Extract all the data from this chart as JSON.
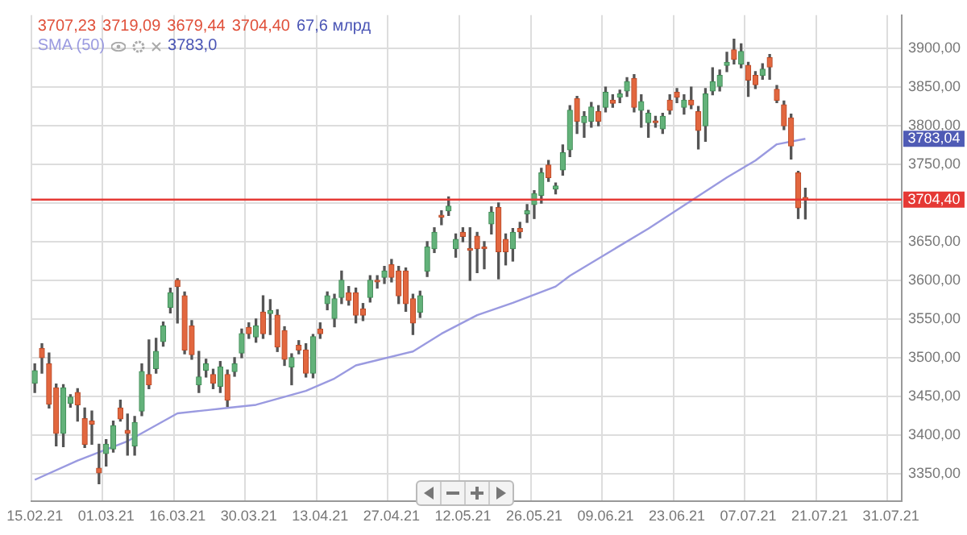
{
  "chart_data": {
    "type": "candlestick",
    "categories": [
      "15.02.21",
      null,
      null,
      null,
      null,
      null,
      null,
      null,
      null,
      null,
      "01.03.21",
      null,
      null,
      null,
      null,
      null,
      null,
      null,
      null,
      null,
      "16.03.21",
      null,
      null,
      null,
      null,
      null,
      null,
      null,
      null,
      null,
      "30.03.21",
      null,
      null,
      null,
      null,
      null,
      null,
      null,
      null,
      null,
      "13.04.21",
      null,
      null,
      null,
      null,
      null,
      null,
      null,
      null,
      null,
      "27.04.21",
      null,
      null,
      null,
      null,
      null,
      null,
      null,
      null,
      null,
      "12.05.21",
      null,
      null,
      null,
      null,
      null,
      null,
      null,
      null,
      null,
      "26.05.21",
      null,
      null,
      null,
      null,
      null,
      null,
      null,
      null,
      null,
      "09.06.21",
      null,
      null,
      null,
      null,
      null,
      null,
      null,
      null,
      null,
      "23.06.21",
      null,
      null,
      null,
      null,
      null,
      null,
      null,
      null,
      null,
      "07.07.21",
      null,
      null,
      null,
      null,
      null,
      null,
      null,
      null,
      null,
      "21.07.21",
      null,
      null,
      null,
      null,
      null,
      null,
      null,
      null,
      null,
      "31.07.21",
      null
    ],
    "ohlc": [
      [
        3467,
        3492,
        3455,
        3483
      ],
      [
        3512,
        3518,
        3480,
        3500
      ],
      [
        3492,
        3506,
        3435,
        3440
      ],
      [
        3461,
        3466,
        3386,
        3402
      ],
      [
        3402,
        3465,
        3385,
        3461
      ],
      [
        3441,
        3452,
        3436,
        3449
      ],
      [
        3455,
        3460,
        3418,
        3439
      ],
      [
        3421,
        3435,
        3384,
        3388
      ],
      [
        3418,
        3431,
        3388,
        3414
      ],
      [
        3357,
        3388,
        3337,
        3351
      ],
      [
        3376,
        3394,
        3360,
        3388
      ],
      [
        3382,
        3418,
        3378,
        3412
      ],
      [
        3435,
        3445,
        3418,
        3421
      ],
      [
        3406,
        3427,
        3374,
        3402
      ],
      [
        3386,
        3424,
        3374,
        3416
      ],
      [
        3431,
        3492,
        3425,
        3482
      ],
      [
        3478,
        3523,
        3460,
        3465
      ],
      [
        3486,
        3525,
        3480,
        3508
      ],
      [
        3521,
        3546,
        3515,
        3541
      ],
      [
        3565,
        3590,
        3558,
        3584
      ],
      [
        3600,
        3602,
        3545,
        3592
      ],
      [
        3580,
        3585,
        3505,
        3510
      ],
      [
        3541,
        3548,
        3498,
        3504
      ],
      [
        3465,
        3508,
        3455,
        3475
      ],
      [
        3484,
        3498,
        3475,
        3492
      ],
      [
        3478,
        3485,
        3460,
        3467
      ],
      [
        3463,
        3495,
        3455,
        3488
      ],
      [
        3478,
        3484,
        3437,
        3445
      ],
      [
        3482,
        3500,
        3476,
        3492
      ],
      [
        3506,
        3537,
        3500,
        3531
      ],
      [
        3539,
        3545,
        3525,
        3531
      ],
      [
        3527,
        3550,
        3520,
        3541
      ],
      [
        3559,
        3580,
        3525,
        3531
      ],
      [
        3557,
        3575,
        3530,
        3561
      ],
      [
        3555,
        3562,
        3508,
        3514
      ],
      [
        3535,
        3540,
        3490,
        3498
      ],
      [
        3488,
        3505,
        3465,
        3500
      ],
      [
        3516,
        3522,
        3505,
        3510
      ],
      [
        3510,
        3518,
        3475,
        3480
      ],
      [
        3480,
        3530,
        3474,
        3527
      ],
      [
        3537,
        3545,
        3525,
        3531
      ],
      [
        3570,
        3585,
        3562,
        3580
      ],
      [
        3551,
        3582,
        3540,
        3576
      ],
      [
        3578,
        3612,
        3570,
        3600
      ],
      [
        3584,
        3592,
        3568,
        3574
      ],
      [
        3584,
        3590,
        3545,
        3555
      ],
      [
        3563,
        3570,
        3548,
        3555
      ],
      [
        3578,
        3606,
        3572,
        3600
      ],
      [
        3600,
        3606,
        3590,
        3598
      ],
      [
        3604,
        3618,
        3596,
        3612
      ],
      [
        3620,
        3627,
        3598,
        3604
      ],
      [
        3612,
        3618,
        3570,
        3580
      ],
      [
        3612,
        3616,
        3560,
        3570
      ],
      [
        3576,
        3582,
        3530,
        3545
      ],
      [
        3559,
        3586,
        3552,
        3580
      ],
      [
        3612,
        3650,
        3605,
        3643
      ],
      [
        3641,
        3668,
        3636,
        3662
      ],
      [
        3684,
        3690,
        3672,
        3682
      ],
      [
        3690,
        3708,
        3684,
        3696
      ],
      [
        3641,
        3660,
        3630,
        3653
      ],
      [
        3662,
        3668,
        3650,
        3657
      ],
      [
        3641,
        3668,
        3600,
        3639
      ],
      [
        3657,
        3662,
        3610,
        3641
      ],
      [
        3643,
        3650,
        3615,
        3641
      ],
      [
        3673,
        3695,
        3660,
        3688
      ],
      [
        3694,
        3700,
        3602,
        3637
      ],
      [
        3653,
        3660,
        3620,
        3637
      ],
      [
        3641,
        3667,
        3625,
        3662
      ],
      [
        3667,
        3675,
        3655,
        3663
      ],
      [
        3686,
        3698,
        3675,
        3690
      ],
      [
        3698,
        3716,
        3680,
        3712
      ],
      [
        3710,
        3745,
        3700,
        3739
      ],
      [
        3749,
        3755,
        3728,
        3733
      ],
      [
        3718,
        3726,
        3712,
        3722
      ],
      [
        3743,
        3775,
        3736,
        3765
      ],
      [
        3769,
        3826,
        3760,
        3820
      ],
      [
        3835,
        3838,
        3790,
        3806
      ],
      [
        3804,
        3818,
        3785,
        3812
      ],
      [
        3806,
        3830,
        3798,
        3824
      ],
      [
        3818,
        3826,
        3800,
        3806
      ],
      [
        3824,
        3850,
        3818,
        3843
      ],
      [
        3833,
        3840,
        3824,
        3829
      ],
      [
        3837,
        3846,
        3830,
        3841
      ],
      [
        3845,
        3862,
        3838,
        3857
      ],
      [
        3861,
        3866,
        3818,
        3824
      ],
      [
        3820,
        3840,
        3798,
        3831
      ],
      [
        3804,
        3820,
        3785,
        3816
      ],
      [
        3806,
        3812,
        3798,
        3804
      ],
      [
        3796,
        3816,
        3790,
        3812
      ],
      [
        3833,
        3840,
        3815,
        3820
      ],
      [
        3843,
        3848,
        3830,
        3837
      ],
      [
        3824,
        3840,
        3815,
        3833
      ],
      [
        3833,
        3850,
        3822,
        3827
      ],
      [
        3818,
        3825,
        3770,
        3794
      ],
      [
        3800,
        3848,
        3780,
        3841
      ],
      [
        3845,
        3875,
        3840,
        3857
      ],
      [
        3851,
        3872,
        3845,
        3865
      ],
      [
        3878,
        3895,
        3870,
        3882
      ],
      [
        3898,
        3912,
        3880,
        3886
      ],
      [
        3880,
        3906,
        3875,
        3896
      ],
      [
        3878,
        3882,
        3838,
        3859
      ],
      [
        3865,
        3870,
        3848,
        3853
      ],
      [
        3865,
        3880,
        3860,
        3873
      ],
      [
        3888,
        3892,
        3860,
        3876
      ],
      [
        3847,
        3852,
        3830,
        3833
      ],
      [
        3827,
        3832,
        3795,
        3800
      ],
      [
        3810,
        3815,
        3757,
        3774
      ],
      [
        3739,
        3741,
        3680,
        3694
      ],
      [
        3707.23,
        3719.09,
        3679.44,
        3704.4
      ],
      null,
      null,
      null,
      null,
      null,
      null,
      null,
      null,
      null,
      null,
      null,
      null,
      null
    ],
    "series": [
      {
        "name": "SMA (50)",
        "type": "line",
        "color": "#9a9ae0",
        "values": [
          3342,
          null,
          null,
          null,
          null,
          null,
          3367,
          null,
          null,
          null,
          null,
          null,
          null,
          3392,
          null,
          null,
          null,
          null,
          null,
          null,
          3428,
          null,
          null,
          null,
          null,
          null,
          null,
          3435,
          null,
          null,
          null,
          3439,
          null,
          null,
          null,
          null,
          null,
          null,
          3457,
          null,
          null,
          null,
          3473,
          null,
          null,
          3490,
          null,
          null,
          null,
          null,
          null,
          null,
          null,
          3508,
          null,
          null,
          null,
          3531,
          null,
          null,
          null,
          null,
          3555,
          null,
          null,
          null,
          null,
          3571,
          null,
          null,
          null,
          null,
          null,
          3592,
          null,
          3606,
          null,
          null,
          null,
          null,
          null,
          null,
          null,
          null,
          null,
          null,
          3667,
          null,
          null,
          null,
          null,
          null,
          null,
          null,
          null,
          null,
          null,
          3733,
          null,
          null,
          null,
          3755,
          null,
          null,
          3776,
          null,
          null,
          null,
          3783.04,
          null,
          null,
          null,
          null,
          null,
          null,
          null,
          null,
          null,
          null,
          null,
          null,
          null
        ]
      }
    ],
    "ylim": [
      3314,
      3943
    ],
    "yticks": [
      {
        "value": 3350,
        "label": "3350,00"
      },
      {
        "value": 3400,
        "label": "3400,00"
      },
      {
        "value": 3450,
        "label": "3450,00"
      },
      {
        "value": 3500,
        "label": "3500,00"
      },
      {
        "value": 3550,
        "label": "3550,00"
      },
      {
        "value": 3600,
        "label": "3600,00"
      },
      {
        "value": 3650,
        "label": "3650,00"
      },
      {
        "value": 3700,
        "label": null
      },
      {
        "value": 3750,
        "label": "3750,00"
      },
      {
        "value": 3800,
        "label": "3800,00"
      },
      {
        "value": 3850,
        "label": "3850,00"
      },
      {
        "value": 3900,
        "label": "3900,00"
      }
    ],
    "ref_lines": [
      {
        "axis": "y",
        "value": 3704.4,
        "label": "3704,40",
        "color": "#e53935"
      }
    ],
    "annotations": [
      "3707,23",
      "3719,09",
      "3679,44",
      "3704,40",
      "67,6 млрд",
      "3783,0",
      "3783,04"
    ],
    "grid": true,
    "legend": "top left"
  }
}
